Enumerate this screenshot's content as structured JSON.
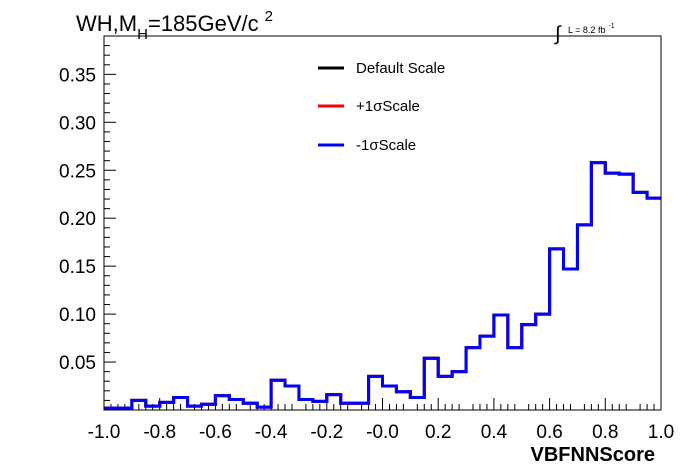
{
  "chart_data": {
    "type": "step",
    "title_main": "WH,M",
    "title_sub": "H",
    "title_rest": "=185GeV/c",
    "title_sup": "2",
    "lumi_label": "L = 8.2 fb",
    "lumi_sup": "-1",
    "xlabel": "VBFNNScore",
    "ylabel": "",
    "xlim": [
      -1.0,
      1.0
    ],
    "ylim": [
      0,
      0.39
    ],
    "x_ticks": [
      -1.0,
      -0.8,
      -0.6,
      -0.4,
      -0.2,
      0.0,
      0.2,
      0.4,
      0.6,
      0.8,
      1.0
    ],
    "x_tick_labels": [
      "-1.0",
      "-0.8",
      "-0.6",
      "-0.4",
      "-0.2",
      "-0.0",
      "0.2",
      "0.4",
      "0.6",
      "0.8",
      "1.0"
    ],
    "y_ticks": [
      0.05,
      0.1,
      0.15,
      0.2,
      0.25,
      0.3,
      0.35
    ],
    "y_tick_labels": [
      "0.05",
      "0.10",
      "0.15",
      "0.20",
      "0.25",
      "0.30",
      "0.35"
    ],
    "bin_edges": [
      -1.0,
      -0.95,
      -0.9,
      -0.85,
      -0.8,
      -0.75,
      -0.7,
      -0.65,
      -0.6,
      -0.55,
      -0.5,
      -0.45,
      -0.4,
      -0.35,
      -0.3,
      -0.25,
      -0.2,
      -0.15,
      -0.1,
      -0.05,
      0.0,
      0.05,
      0.1,
      0.15,
      0.2,
      0.25,
      0.3,
      0.35,
      0.4,
      0.45,
      0.5,
      0.55,
      0.6,
      0.65,
      0.7,
      0.75,
      0.8,
      0.85,
      0.9,
      0.95,
      1.0
    ],
    "series": [
      {
        "name": "Default Scale",
        "color": "#000000",
        "values": [
          0.002,
          0.002,
          0.01,
          0.004,
          0.008,
          0.013,
          0.004,
          0.006,
          0.015,
          0.011,
          0.007,
          0.003,
          0.031,
          0.025,
          0.011,
          0.009,
          0.016,
          0.007,
          0.007,
          0.035,
          0.025,
          0.019,
          0.013,
          0.054,
          0.035,
          0.04,
          0.065,
          0.077,
          0.099,
          0.065,
          0.089,
          0.1,
          0.168,
          0.147,
          0.193,
          0.258,
          0.247,
          0.246,
          0.227,
          0.221
        ]
      },
      {
        "name": "+1σScale",
        "color": "#ff0000",
        "values": [
          0.002,
          0.002,
          0.01,
          0.004,
          0.008,
          0.013,
          0.004,
          0.006,
          0.015,
          0.011,
          0.007,
          0.003,
          0.031,
          0.025,
          0.011,
          0.009,
          0.016,
          0.007,
          0.007,
          0.035,
          0.025,
          0.019,
          0.013,
          0.054,
          0.035,
          0.04,
          0.065,
          0.077,
          0.099,
          0.065,
          0.089,
          0.1,
          0.168,
          0.147,
          0.193,
          0.258,
          0.247,
          0.246,
          0.227,
          0.221
        ]
      },
      {
        "name": "-1σScale",
        "color": "#0000ff",
        "values": [
          0.002,
          0.002,
          0.01,
          0.004,
          0.008,
          0.013,
          0.004,
          0.006,
          0.015,
          0.011,
          0.007,
          0.003,
          0.031,
          0.025,
          0.011,
          0.009,
          0.016,
          0.007,
          0.007,
          0.035,
          0.025,
          0.019,
          0.013,
          0.054,
          0.035,
          0.04,
          0.065,
          0.077,
          0.099,
          0.065,
          0.089,
          0.1,
          0.168,
          0.147,
          0.193,
          0.258,
          0.247,
          0.246,
          0.227,
          0.221
        ]
      }
    ],
    "legend_position": "top-center",
    "grid": false
  }
}
